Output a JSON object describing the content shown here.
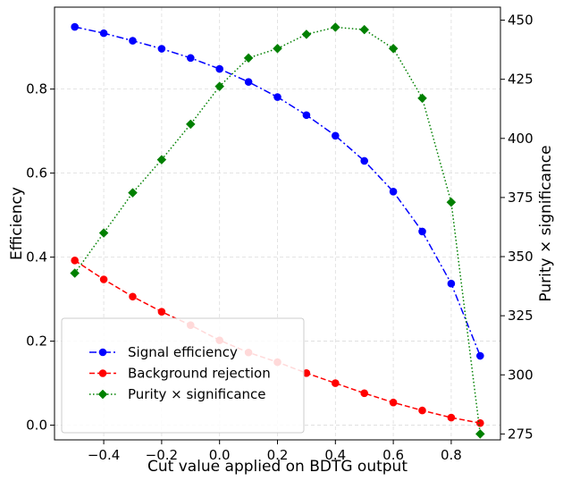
{
  "chart_data": {
    "type": "line",
    "xlabel": "Cut value applied on BDTG output",
    "ylabel": "Efficiency",
    "y2label": "Purity × significance",
    "x": [
      -0.5,
      -0.4,
      -0.3,
      -0.2,
      -0.1,
      0.0,
      0.1,
      0.2,
      0.3,
      0.4,
      0.5,
      0.6,
      0.7,
      0.8,
      0.9
    ],
    "xlim": [
      -0.57,
      0.97
    ],
    "ylim": [
      -0.035,
      0.995
    ],
    "y2lim": [
      272.5,
      455.5
    ],
    "xticks": [
      -0.4,
      -0.2,
      0.0,
      0.2,
      0.4,
      0.6,
      0.8
    ],
    "xtick_labels": [
      "−0.4",
      "−0.2",
      "0.0",
      "0.2",
      "0.4",
      "0.6",
      "0.8"
    ],
    "yticks": [
      0.0,
      0.2,
      0.4,
      0.6,
      0.8
    ],
    "ytick_labels": [
      "0.0",
      "0.2",
      "0.4",
      "0.6",
      "0.8"
    ],
    "y2ticks": [
      275,
      300,
      325,
      350,
      375,
      400,
      425,
      450
    ],
    "y2tick_labels": [
      "275",
      "300",
      "325",
      "350",
      "375",
      "400",
      "425",
      "450"
    ],
    "grid": true,
    "legend_position": "lower-left",
    "series": [
      {
        "name": "Signal efficiency",
        "axis": "left",
        "color": "#0000ff",
        "linestyle": "dashdot",
        "marker": "circle",
        "values": [
          0.948,
          0.933,
          0.915,
          0.896,
          0.874,
          0.848,
          0.817,
          0.781,
          0.738,
          0.689,
          0.629,
          0.556,
          0.461,
          0.337,
          0.165
        ]
      },
      {
        "name": "Background rejection",
        "axis": "left",
        "color": "#ff0000",
        "linestyle": "dashed",
        "marker": "circle",
        "values": [
          0.392,
          0.347,
          0.306,
          0.27,
          0.238,
          0.202,
          0.173,
          0.15,
          0.124,
          0.1,
          0.076,
          0.054,
          0.035,
          0.018,
          0.005
        ]
      },
      {
        "name": "Purity × significance",
        "axis": "right",
        "color": "#008000",
        "linestyle": "dotted",
        "marker": "diamond",
        "values": [
          343,
          360,
          377,
          391,
          406,
          422,
          434,
          438,
          444,
          447,
          446,
          438,
          417,
          373,
          275
        ]
      }
    ]
  }
}
